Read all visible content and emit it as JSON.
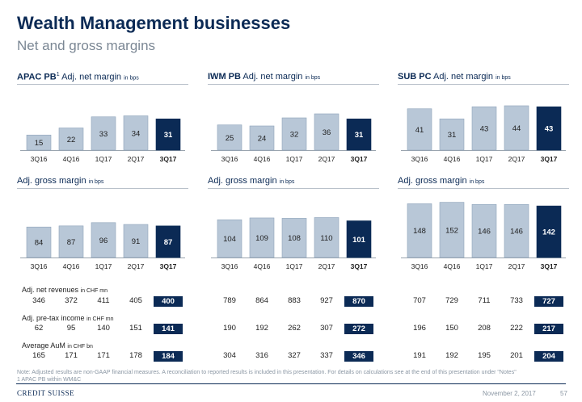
{
  "header": {
    "title": "Wealth Management businesses",
    "subtitle": "Net and gross margins"
  },
  "columns": [
    {
      "name": "APAC PB",
      "sup": "1"
    },
    {
      "name": "IWM PB",
      "sup": ""
    },
    {
      "name": "SUB PC",
      "sup": ""
    }
  ],
  "labels": {
    "net_margin": "Adj. net margin",
    "gross_margin": "Adj. gross margin",
    "unit_bps": "in bps"
  },
  "chart_data": [
    {
      "type": "bar",
      "group": "APAC PB",
      "metric": "Adj. net margin in bps",
      "categories": [
        "3Q16",
        "4Q16",
        "1Q17",
        "2Q17",
        "3Q17"
      ],
      "values": [
        15,
        22,
        33,
        34,
        31
      ],
      "highlight": "3Q17"
    },
    {
      "type": "bar",
      "group": "IWM PB",
      "metric": "Adj. net margin in bps",
      "categories": [
        "3Q16",
        "4Q16",
        "1Q17",
        "2Q17",
        "3Q17"
      ],
      "values": [
        25,
        24,
        32,
        36,
        31
      ],
      "highlight": "3Q17"
    },
    {
      "type": "bar",
      "group": "SUB PC",
      "metric": "Adj. net margin in bps",
      "categories": [
        "3Q16",
        "4Q16",
        "1Q17",
        "2Q17",
        "3Q17"
      ],
      "values": [
        41,
        31,
        43,
        44,
        43
      ],
      "highlight": "3Q17"
    },
    {
      "type": "bar",
      "group": "APAC PB",
      "metric": "Adj. gross margin in bps",
      "categories": [
        "3Q16",
        "4Q16",
        "1Q17",
        "2Q17",
        "3Q17"
      ],
      "values": [
        84,
        87,
        96,
        91,
        87
      ],
      "highlight": "3Q17"
    },
    {
      "type": "bar",
      "group": "IWM PB",
      "metric": "Adj. gross margin in bps",
      "categories": [
        "3Q16",
        "4Q16",
        "1Q17",
        "2Q17",
        "3Q17"
      ],
      "values": [
        104,
        109,
        108,
        110,
        101
      ],
      "highlight": "3Q17"
    },
    {
      "type": "bar",
      "group": "SUB PC",
      "metric": "Adj. gross margin in bps",
      "categories": [
        "3Q16",
        "4Q16",
        "1Q17",
        "2Q17",
        "3Q17"
      ],
      "values": [
        148,
        152,
        146,
        146,
        142
      ],
      "highlight": "3Q17"
    }
  ],
  "table": {
    "rows": [
      {
        "label": "Adj. net revenues",
        "unit": "in CHF mn",
        "values": [
          [
            346,
            372,
            411,
            405,
            400
          ],
          [
            789,
            864,
            883,
            927,
            870
          ],
          [
            707,
            729,
            711,
            733,
            727
          ]
        ]
      },
      {
        "label": "Adj. pre-tax income",
        "unit": "in CHF mn",
        "values": [
          [
            62,
            95,
            140,
            151,
            141
          ],
          [
            190,
            192,
            262,
            307,
            272
          ],
          [
            196,
            150,
            208,
            222,
            217
          ]
        ]
      },
      {
        "label": "Average AuM",
        "unit": "in CHF bn",
        "values": [
          [
            165,
            171,
            171,
            178,
            184
          ],
          [
            304,
            316,
            327,
            337,
            346
          ],
          [
            191,
            192,
            195,
            201,
            204
          ]
        ]
      }
    ]
  },
  "notes": {
    "line1": "Note: Adjusted results are non-GAAP financial measures. A reconciliation to reported results is included in this presentation. For details on calculations see at the end of this presentation under \"Notes\"",
    "line2": "1 APAC PB within WM&C"
  },
  "footer": {
    "logo": "CREDIT SUISSE",
    "date": "November 2, 2017",
    "page": "57"
  },
  "colors": {
    "navy": "#0b2a55",
    "bar": "#b8c7d7",
    "bar_stroke": "#8ea3ba",
    "axis": "#9aa4ae"
  }
}
